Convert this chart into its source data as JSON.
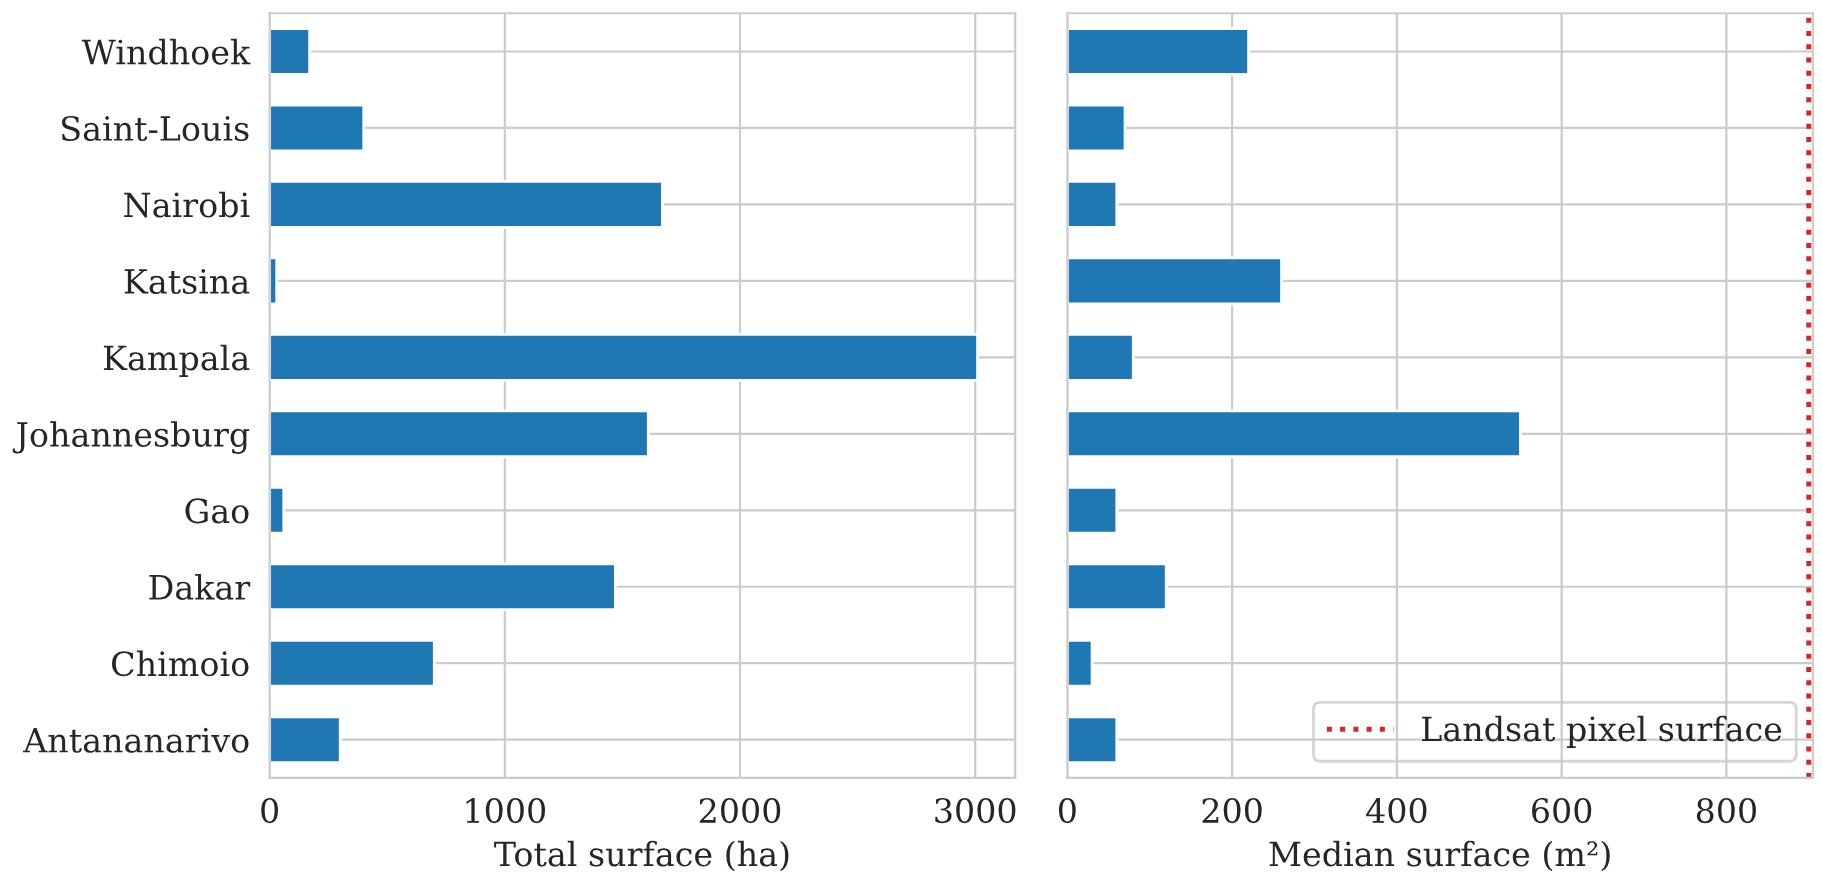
{
  "chart_data": [
    {
      "type": "bar",
      "orientation": "horizontal",
      "xlabel": "Total surface (ha)",
      "categories": [
        "Windhoek",
        "Saint-Louis",
        "Nairobi",
        "Katsina",
        "Kampala",
        "Johannesburg",
        "Gao",
        "Dakar",
        "Chimoio",
        "Antananarivo"
      ],
      "series": [
        {
          "color": "#1f77b4",
          "values": [
            170,
            400,
            1670,
            30,
            3010,
            1610,
            60,
            1470,
            700,
            300
          ]
        }
      ],
      "xlim": [
        0,
        3170
      ],
      "xticks": [
        0,
        1000,
        2000,
        3000
      ],
      "grid": true
    },
    {
      "type": "bar",
      "orientation": "horizontal",
      "xlabel": "Median surface (m²)",
      "categories": [
        null,
        null,
        null,
        null,
        null,
        null,
        null,
        null,
        null,
        null
      ],
      "series": [
        {
          "color": "#1f77b4",
          "values": [
            220,
            70,
            60,
            260,
            80,
            550,
            60,
            120,
            30,
            60
          ]
        }
      ],
      "xlim": [
        0,
        905
      ],
      "xticks": [
        0,
        200,
        400,
        600,
        800
      ],
      "grid": true,
      "tick_labels": "x",
      "ref_lines": [
        {
          "axis": "x",
          "value": 900,
          "label": "Landsat pixel surface",
          "color": "#d62728",
          "line_style": "dotted"
        }
      ],
      "legend": "bottom right"
    }
  ]
}
